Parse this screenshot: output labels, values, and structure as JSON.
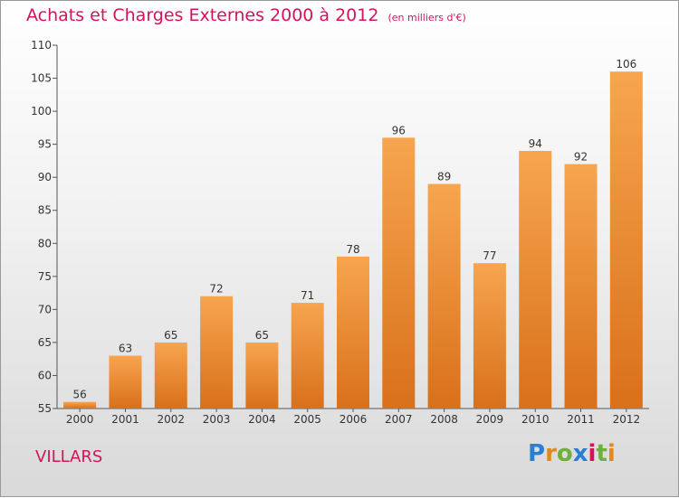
{
  "header": {
    "title": "Achats et Charges Externes 2000 à 2012",
    "unit": "(en milliers d'€)"
  },
  "footer": {
    "city": "VILLARS",
    "logo": "Proxiti"
  },
  "colors": {
    "title": "#d4145a",
    "bar_light": "#f7a54f",
    "bar_dark": "#d9701a",
    "logo": [
      "#2a7fd4",
      "#e08a1e",
      "#6fb03a",
      "#2a7fd4",
      "#d4145a",
      "#6fb03a",
      "#e08a1e"
    ]
  },
  "chart_data": {
    "type": "bar",
    "categories": [
      "2000",
      "2001",
      "2002",
      "2003",
      "2004",
      "2005",
      "2006",
      "2007",
      "2008",
      "2009",
      "2010",
      "2011",
      "2012"
    ],
    "values": [
      56,
      63,
      65,
      72,
      65,
      71,
      78,
      96,
      89,
      77,
      94,
      92,
      106
    ],
    "ylim": [
      55,
      110
    ],
    "yticks": [
      55,
      60,
      65,
      70,
      75,
      80,
      85,
      90,
      95,
      100,
      105,
      110
    ],
    "xlabel": "",
    "ylabel": "",
    "grid": false,
    "legend": false
  }
}
